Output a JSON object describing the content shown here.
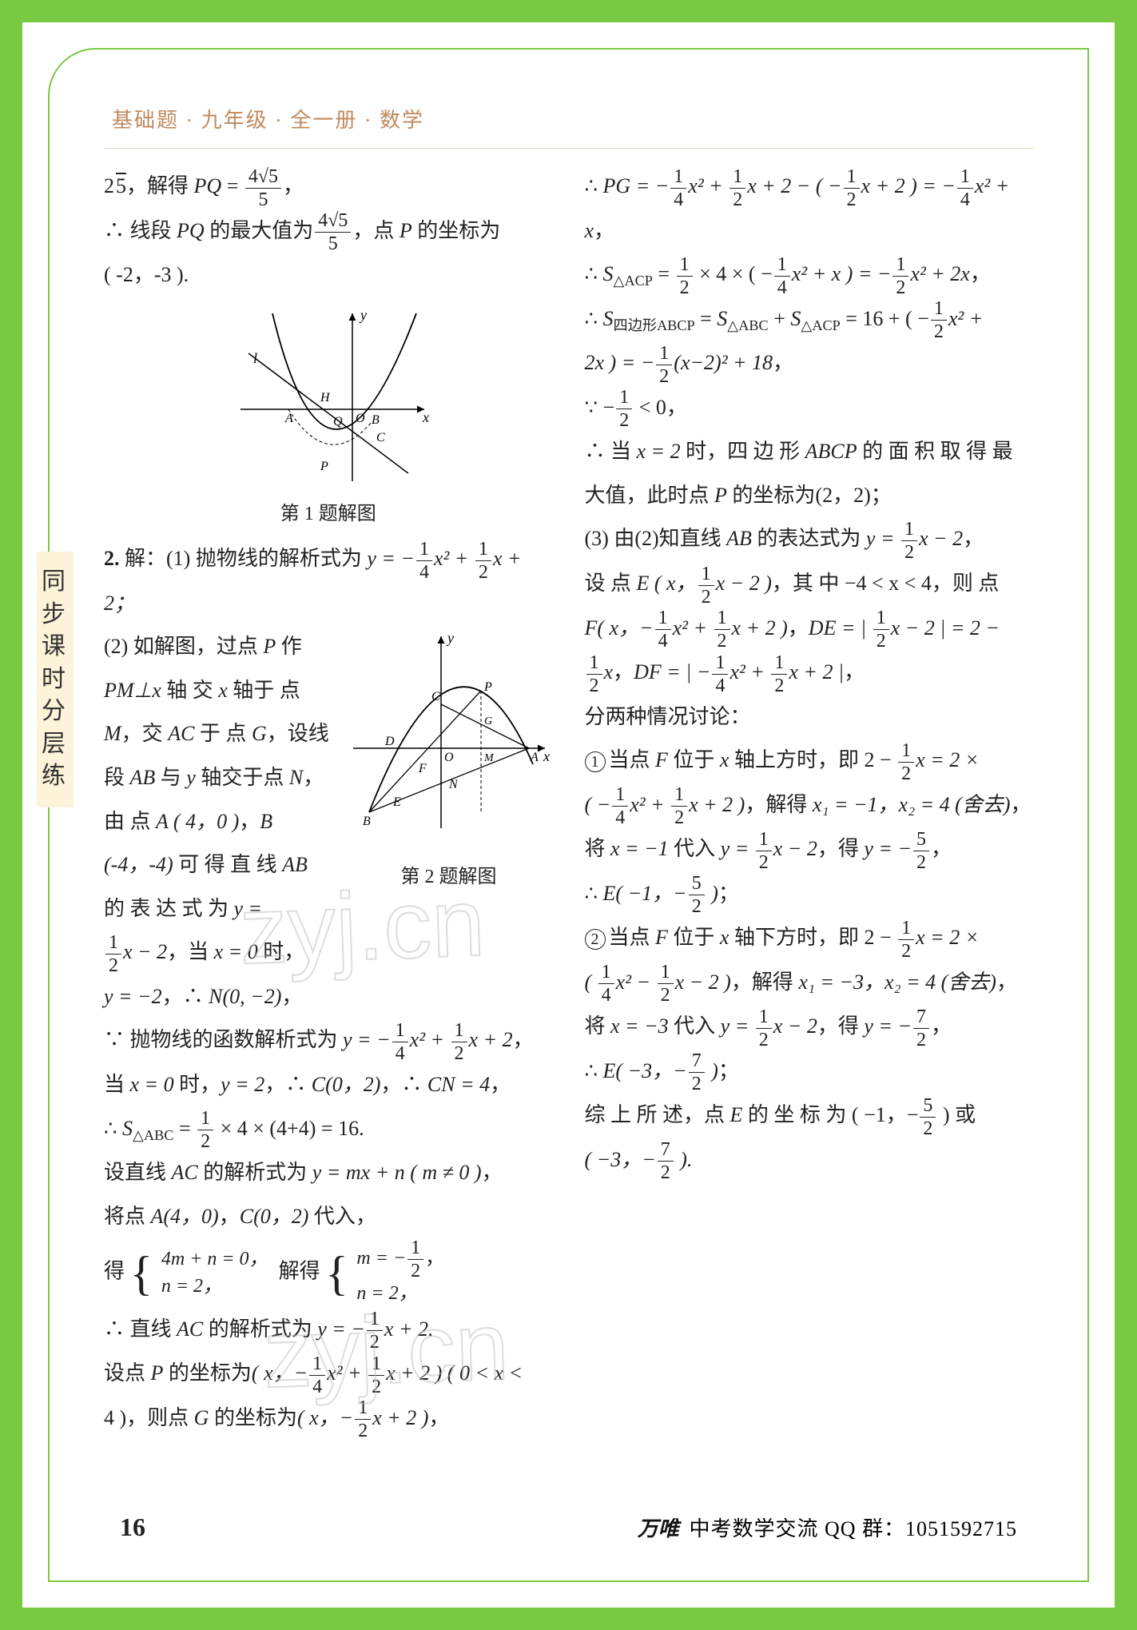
{
  "header": "基础题 · 九年级 · 全一册 · 数学",
  "side_tab": "同步课时分层练",
  "page_number": "16",
  "footer_brand": "万唯",
  "footer_text": "中考数学交流 QQ 群：1051592715",
  "watermark": "zyj.cn",
  "fig1_caption": "第 1 题解图",
  "fig2_caption": "第 2 题解图",
  "left": {
    "l1a": "2",
    "l1b": "，解得 ",
    "l1c": "PQ",
    "l1d": " = ",
    "l1_num": "4√5",
    "l1_den": "5",
    "l1e": "，",
    "l2a": "∴ 线段 ",
    "l2b": "PQ",
    "l2c": " 的最大值为",
    "l2_num": "4√5",
    "l2_den": "5",
    "l2d": "，点 ",
    "l2e": "P",
    "l2f": " 的坐标为",
    "l3": "( -2，-3 ).",
    "q2_label": "2.",
    "q2a": " 解：(1) 抛物线的解析式为 ",
    "q2b": "y = −",
    "q2c": "x² + ",
    "q2d": "x + 2；",
    "p2a": "(2) 如解图，过点 ",
    "p2b": "P",
    "p2c": " 作 ",
    "p2d": "PM⊥x",
    "p2e": " 轴 交 ",
    "p2f": "x",
    "p2g": " 轴于 点 ",
    "p2h": "M",
    "p2i": "，交 ",
    "p2j": "AC",
    "p2k": " 于 点 ",
    "p2l": "G",
    "p2m": "，设线段 ",
    "p2n": "AB",
    "p2o": " 与 ",
    "p2p": "y",
    "p2q": " 轴交于点 ",
    "p2r": "N",
    "p2s": "，",
    "p3a": "由 点 ",
    "p3b": "A ( 4，0 )",
    "p3c": "，",
    "p3d": "B (-4，-4)",
    "p3e": " 可 得 直 线 ",
    "p3f": "AB",
    "p3g": " 的 表 达 式 为 ",
    "p3h": "y =",
    "p4a": "x − 2",
    "p4b": "，当 ",
    "p4c": "x = 0",
    "p4d": " 时，",
    "p5a": "y = −2",
    "p5b": "，∴ ",
    "p5c": "N(0, −2)",
    "p5d": "，",
    "p6a": "∵ 抛物线的函数解析式为 ",
    "p6b": "y = −",
    "p6c": "x² + ",
    "p6d": "x + 2",
    "p6e": "，",
    "p7a": "当 ",
    "p7b": "x = 0",
    "p7c": " 时，",
    "p7d": "y = 2",
    "p7e": "，∴ ",
    "p7f": "C(0，2)",
    "p7g": "，∴ ",
    "p7h": "CN = 4",
    "p7i": "，",
    "p8a": "∴ ",
    "p8b": "S",
    "p8c": "△ABC",
    "p8d": " = ",
    "p8e": " × 4 × (4+4) = 16.",
    "p9a": "设直线 ",
    "p9b": "AC",
    "p9c": " 的解析式为 ",
    "p9d": "y = mx + n ( m ≠ 0 )",
    "p9e": "，",
    "p10a": "将点 ",
    "p10b": "A(4，0)",
    "p10c": "，",
    "p10d": "C(0，2)",
    "p10e": " 代入，",
    "p11a": "得",
    "p11b": "4m + n = 0，",
    "p11c": "n = 2，",
    "p11d": "解得",
    "p11e": "m = −",
    "p11f": "，",
    "p11g": "n = 2，",
    "p12a": "∴ 直线 ",
    "p12b": "AC",
    "p12c": " 的解析式为 ",
    "p12d": "y = −",
    "p12e": "x + 2.",
    "p13a": "设点 ",
    "p13b": "P",
    "p13c": " 的坐标为",
    "p13d": "( x，−",
    "p13e": "x² + ",
    "p13f": "x + 2 ) ( 0 < x <",
    "p14a": "4 )，则点 ",
    "p14b": "G",
    "p14c": " 的坐标为",
    "p14d": "( x，−",
    "p14e": "x + 2 )",
    "p14f": "，"
  },
  "right": {
    "r1a": "∴ ",
    "r1b": "PG = −",
    "r1c": "x² + ",
    "r1d": "x + 2 − ( −",
    "r1e": "x + 2 ) = −",
    "r1f": "x² + x",
    "r1g": "，",
    "r2a": "∴ ",
    "r2b": "S",
    "r2c": "△ACP",
    "r2d": " = ",
    "r2e": " × 4 × ( −",
    "r2f": "x² + x ) = −",
    "r2g": "x² + 2x",
    "r2h": "，",
    "r3a": "∴ ",
    "r3b": "S",
    "r3c": "四边形ABCP",
    "r3d": " = ",
    "r3e": "S",
    "r3f": "△ABC",
    "r3g": " + ",
    "r3h": "S",
    "r3i": "△ACP",
    "r3j": " = 16 + ( −",
    "r3k": "x² +",
    "r4a": "2x ) = −",
    "r4b": "(x−2)² + 18",
    "r4c": "，",
    "r5a": "∵ −",
    "r5b": " < 0，",
    "r6a": "∴ 当 ",
    "r6b": "x = 2",
    "r6c": " 时，四 边 形 ",
    "r6d": "ABCP",
    "r6e": " 的 面 积 取 得 最 大值，此时点 ",
    "r6f": "P",
    "r6g": " 的坐标为(2，2)；",
    "r7a": "(3) 由(2)知直线 ",
    "r7b": "AB",
    "r7c": " 的表达式为 ",
    "r7d": "y = ",
    "r7e": "x − 2",
    "r7f": "，",
    "r8a": "设 点 ",
    "r8b": "E ( x，",
    "r8c": "x − 2 )",
    "r8d": "，其 中 −4 < x < 4，则 点",
    "r9a": "F( x，−",
    "r9b": "x² + ",
    "r9c": "x + 2 )",
    "r9d": "，",
    "r9e": "DE = | ",
    "r9f": "x − 2 | = 2 −",
    "r10a": "x",
    "r10b": "，",
    "r10c": "DF = | −",
    "r10d": "x² + ",
    "r10e": "x + 2 |",
    "r10f": "，",
    "r11": "分两种情况讨论：",
    "r12a": "当点 ",
    "r12b": "F",
    "r12c": " 位于 ",
    "r12d": "x",
    "r12e": " 轴上方时，即 2 − ",
    "r12f": "x = 2 ×",
    "r13a": "( −",
    "r13b": "x² + ",
    "r13c": "x + 2 )",
    "r13d": "，解得 ",
    "r13e": "x₁ = −1，x₂ = 4 (舍去)",
    "r13f": "，",
    "r14a": "将 ",
    "r14b": "x = −1",
    "r14c": " 代入 ",
    "r14d": "y = ",
    "r14e": "x − 2",
    "r14f": "，得 ",
    "r14g": "y = −",
    "r14h": "，",
    "r15a": "∴ ",
    "r15b": "E( −1，−",
    "r15c": " )",
    "r15d": "；",
    "r16a": "当点 ",
    "r16b": "F",
    "r16c": " 位于 ",
    "r16d": "x",
    "r16e": " 轴下方时，即 2 − ",
    "r16f": "x = 2 ×",
    "r17a": "( ",
    "r17b": "x² − ",
    "r17c": "x − 2 )",
    "r17d": "，解得 ",
    "r17e": "x₁ = −3，x₂ = 4 (舍去)",
    "r17f": "，",
    "r18a": "将 ",
    "r18b": "x = −3",
    "r18c": " 代入 ",
    "r18d": "y = ",
    "r18e": "x − 2",
    "r18f": "，得 ",
    "r18g": "y = −",
    "r18h": "，",
    "r19a": "∴ ",
    "r19b": "E( −3，−",
    "r19c": " )",
    "r19d": "；",
    "r20a": "综 上 所 述，点 ",
    "r20b": "E",
    "r20c": " 的 坐 标 为 ( −1，−",
    "r20d": " ) 或",
    "r21a": "( −3，−",
    "r21b": " ).",
    "num1": "1",
    "num2": "2",
    "num4": "4",
    "num5": "5",
    "num7": "7"
  }
}
